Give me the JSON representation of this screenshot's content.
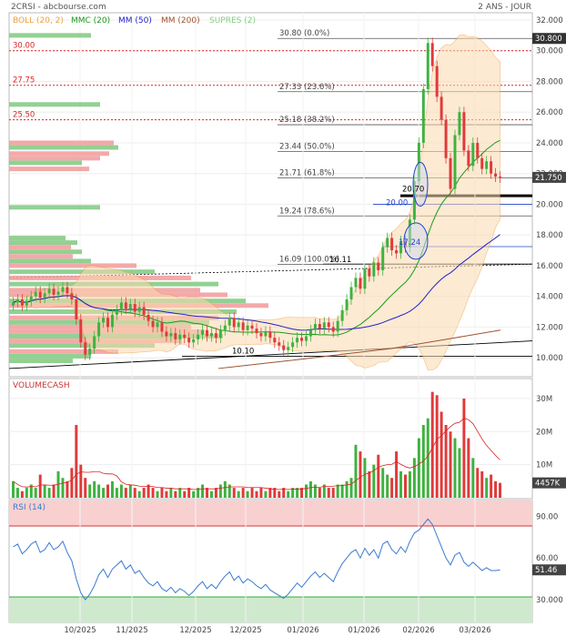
{
  "header": {
    "title": "2CRSI - abcbourse.com",
    "period": "2 ANS - JOUR",
    "legend": [
      {
        "label": "BOLL (20, 2)",
        "color": "#f0a040"
      },
      {
        "label": "MMC (20)",
        "color": "#1a9a1a"
      },
      {
        "label": "MM (50)",
        "color": "#2222cc"
      },
      {
        "label": "MM (200)",
        "color": "#a0522d"
      },
      {
        "label": "SUPRES (2)",
        "color": "#7fcf7f"
      }
    ]
  },
  "colors": {
    "up": "#3fb23f",
    "down": "#e03a3a",
    "rsi": "#3b7bd0",
    "price_box": "#444444"
  },
  "price_axis": {
    "ticks": [
      "32.000",
      "30.000",
      "28.000",
      "26.000",
      "24.000",
      "22.000",
      "20.000",
      "18.000",
      "16.000",
      "14.000",
      "12.000",
      "10.000"
    ]
  },
  "price_tag": "21.750",
  "high_tag": "30.800",
  "volume_axis": {
    "ticks": [
      "30M",
      "20M",
      "10M"
    ]
  },
  "volume_tag": "4457K",
  "volume_label": "VOLUMECASH",
  "rsi_axis": {
    "ticks": [
      "90.00",
      "60.00",
      "30.000"
    ]
  },
  "rsi_label": "RSI (14)",
  "rsi_tag": "51.46",
  "x_axis": {
    "labels": [
      "10/2025",
      "11/2025",
      "12/2025",
      "12/2025",
      "01/2026",
      "01/2026",
      "02/2026",
      "03/2026"
    ]
  },
  "resistance_labels": [
    "30.00",
    "27.75",
    "25.50"
  ],
  "fib_labels": [
    "30.80 (0.0%)",
    "27.33 (23.6%)",
    "25.18 (38.2%)",
    "23.44 (50.0%)",
    "21.71 (61.8%)",
    "19.24 (78.6%)",
    "16.09 (100.0%)"
  ],
  "annotations": [
    "20.70",
    "20.00",
    "17.24",
    "16.11",
    "10.10"
  ],
  "chart_data": {
    "type": "candlestick",
    "title": "2CRSI",
    "price_range": [
      9,
      32
    ],
    "volume_range": [
      0,
      33
    ],
    "volume_unit": "M",
    "rsi_range": [
      15,
      100
    ],
    "rsi_bands": [
      30,
      70
    ],
    "last_price": 21.75,
    "last_volume": "4457K",
    "last_rsi": 51.46,
    "fibonacci": [
      {
        "level": 30.8,
        "pct": "0.0%"
      },
      {
        "level": 27.33,
        "pct": "23.6%"
      },
      {
        "level": 25.18,
        "pct": "38.2%"
      },
      {
        "level": 23.44,
        "pct": "50.0%"
      },
      {
        "level": 21.71,
        "pct": "61.8%"
      },
      {
        "level": 19.24,
        "pct": "78.6%"
      },
      {
        "level": 16.09,
        "pct": "100.0%"
      }
    ],
    "resistances": [
      30.0,
      27.75,
      25.5
    ],
    "support": 20.7,
    "close": [
      13.6,
      13.8,
      13.4,
      13.7,
      14.0,
      14.3,
      13.9,
      14.2,
      14.5,
      14.1,
      14.3,
      14.6,
      14.2,
      13.8,
      12.5,
      11.0,
      10.2,
      10.6,
      11.4,
      12.3,
      12.6,
      12.0,
      12.8,
      13.1,
      13.6,
      13.2,
      13.5,
      13.0,
      13.3,
      12.8,
      12.4,
      12.0,
      12.3,
      11.7,
      11.4,
      11.6,
      11.2,
      11.5,
      11.3,
      11.0,
      11.2,
      11.5,
      11.8,
      11.4,
      11.6,
      11.3,
      11.8,
      12.1,
      12.6,
      12.0,
      12.3,
      11.8,
      12.1,
      11.9,
      11.6,
      11.4,
      11.7,
      11.3,
      11.0,
      10.8,
      10.5,
      10.7,
      11.0,
      11.3,
      11.1,
      11.4,
      11.8,
      12.2,
      11.9,
      12.3,
      12.0,
      11.7,
      12.4,
      13.1,
      13.8,
      14.6,
      15.2,
      14.5,
      15.8,
      15.3,
      16.2,
      15.7,
      17.2,
      17.8,
      17.0,
      16.8,
      17.6,
      17.2,
      19.0,
      21.5,
      24.0,
      27.5,
      30.5,
      29.0,
      27.0,
      25.5,
      23.0,
      21.0,
      24.5,
      26.0,
      23.5,
      22.5,
      24.0,
      23.0,
      22.3,
      22.8,
      22.0,
      21.8,
      21.75
    ],
    "volume": [
      5,
      3,
      2,
      3,
      4,
      3,
      7,
      4,
      3,
      4,
      8,
      6,
      5,
      9,
      22,
      10,
      6,
      4,
      5,
      4,
      3,
      4,
      5,
      3,
      4,
      3,
      4,
      3,
      2,
      3,
      4,
      3,
      2,
      3,
      2,
      3,
      2,
      3,
      2,
      3,
      2,
      3,
      4,
      3,
      2,
      3,
      4,
      5,
      4,
      3,
      2,
      3,
      2,
      3,
      2,
      3,
      2,
      3,
      3,
      2,
      3,
      2,
      3,
      3,
      3,
      4,
      5,
      4,
      3,
      4,
      3,
      3,
      4,
      4,
      5,
      6,
      16,
      14,
      12,
      8,
      10,
      13,
      9,
      7,
      6,
      14,
      8,
      7,
      8,
      12,
      18,
      22,
      24,
      32,
      31,
      26,
      22,
      20,
      18,
      15,
      30,
      18,
      12,
      9,
      8,
      6,
      7,
      5,
      4.5
    ],
    "rsi": [
      68,
      70,
      63,
      66,
      70,
      72,
      64,
      66,
      71,
      66,
      68,
      72,
      64,
      58,
      45,
      35,
      30,
      34,
      40,
      48,
      52,
      46,
      52,
      55,
      58,
      52,
      55,
      49,
      51,
      46,
      42,
      40,
      43,
      38,
      36,
      39,
      35,
      38,
      36,
      33,
      36,
      40,
      43,
      38,
      41,
      38,
      43,
      47,
      50,
      44,
      47,
      42,
      45,
      43,
      40,
      38,
      41,
      37,
      35,
      33,
      31,
      34,
      38,
      42,
      39,
      43,
      47,
      50,
      46,
      49,
      46,
      43,
      50,
      56,
      60,
      64,
      66,
      60,
      67,
      62,
      66,
      60,
      70,
      72,
      66,
      63,
      68,
      64,
      72,
      78,
      80,
      84,
      88,
      84,
      76,
      68,
      60,
      55,
      62,
      64,
      57,
      54,
      57,
      54,
      51,
      53,
      51,
      51,
      51.46
    ]
  }
}
